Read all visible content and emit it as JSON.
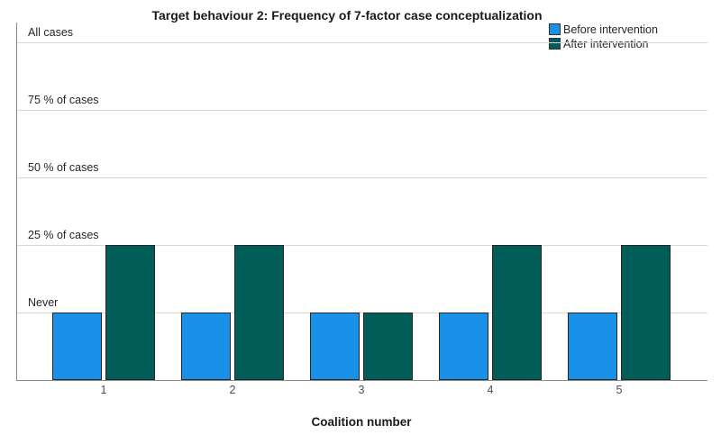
{
  "chart_data": {
    "type": "bar",
    "title": "Target behaviour 2: Frequency of 7-factor case conceptualization",
    "xlabel": "Coalition number",
    "ylabel": "",
    "categories": [
      "1",
      "2",
      "3",
      "4",
      "5"
    ],
    "series": [
      {
        "name": "Before intervention",
        "color": "#1991e8",
        "values": [
          1,
          1,
          1,
          1,
          1
        ],
        "value_labels": [
          "Never",
          "Never",
          "Never",
          "Never",
          "Never"
        ]
      },
      {
        "name": "After intervention",
        "color": "#005d57",
        "values": [
          2,
          2,
          1,
          2,
          2
        ],
        "value_labels": [
          "25 % of cases",
          "25 % of cases",
          "Never",
          "25 % of cases",
          "25 % of cases"
        ]
      }
    ],
    "y_ticks": [
      {
        "value": 1,
        "label": "Never"
      },
      {
        "value": 2,
        "label": "25 % of cases"
      },
      {
        "value": 3,
        "label": "50 % of cases"
      },
      {
        "value": 4,
        "label": "75 % of cases"
      },
      {
        "value": 5,
        "label": "All cases"
      }
    ],
    "ylim": [
      0,
      5
    ],
    "grid": "horizontal",
    "legend_position": "top-right",
    "bar_edge_color": "#262626",
    "axis_color": "#8c8c8c",
    "grid_color": "#d9d9d9"
  }
}
